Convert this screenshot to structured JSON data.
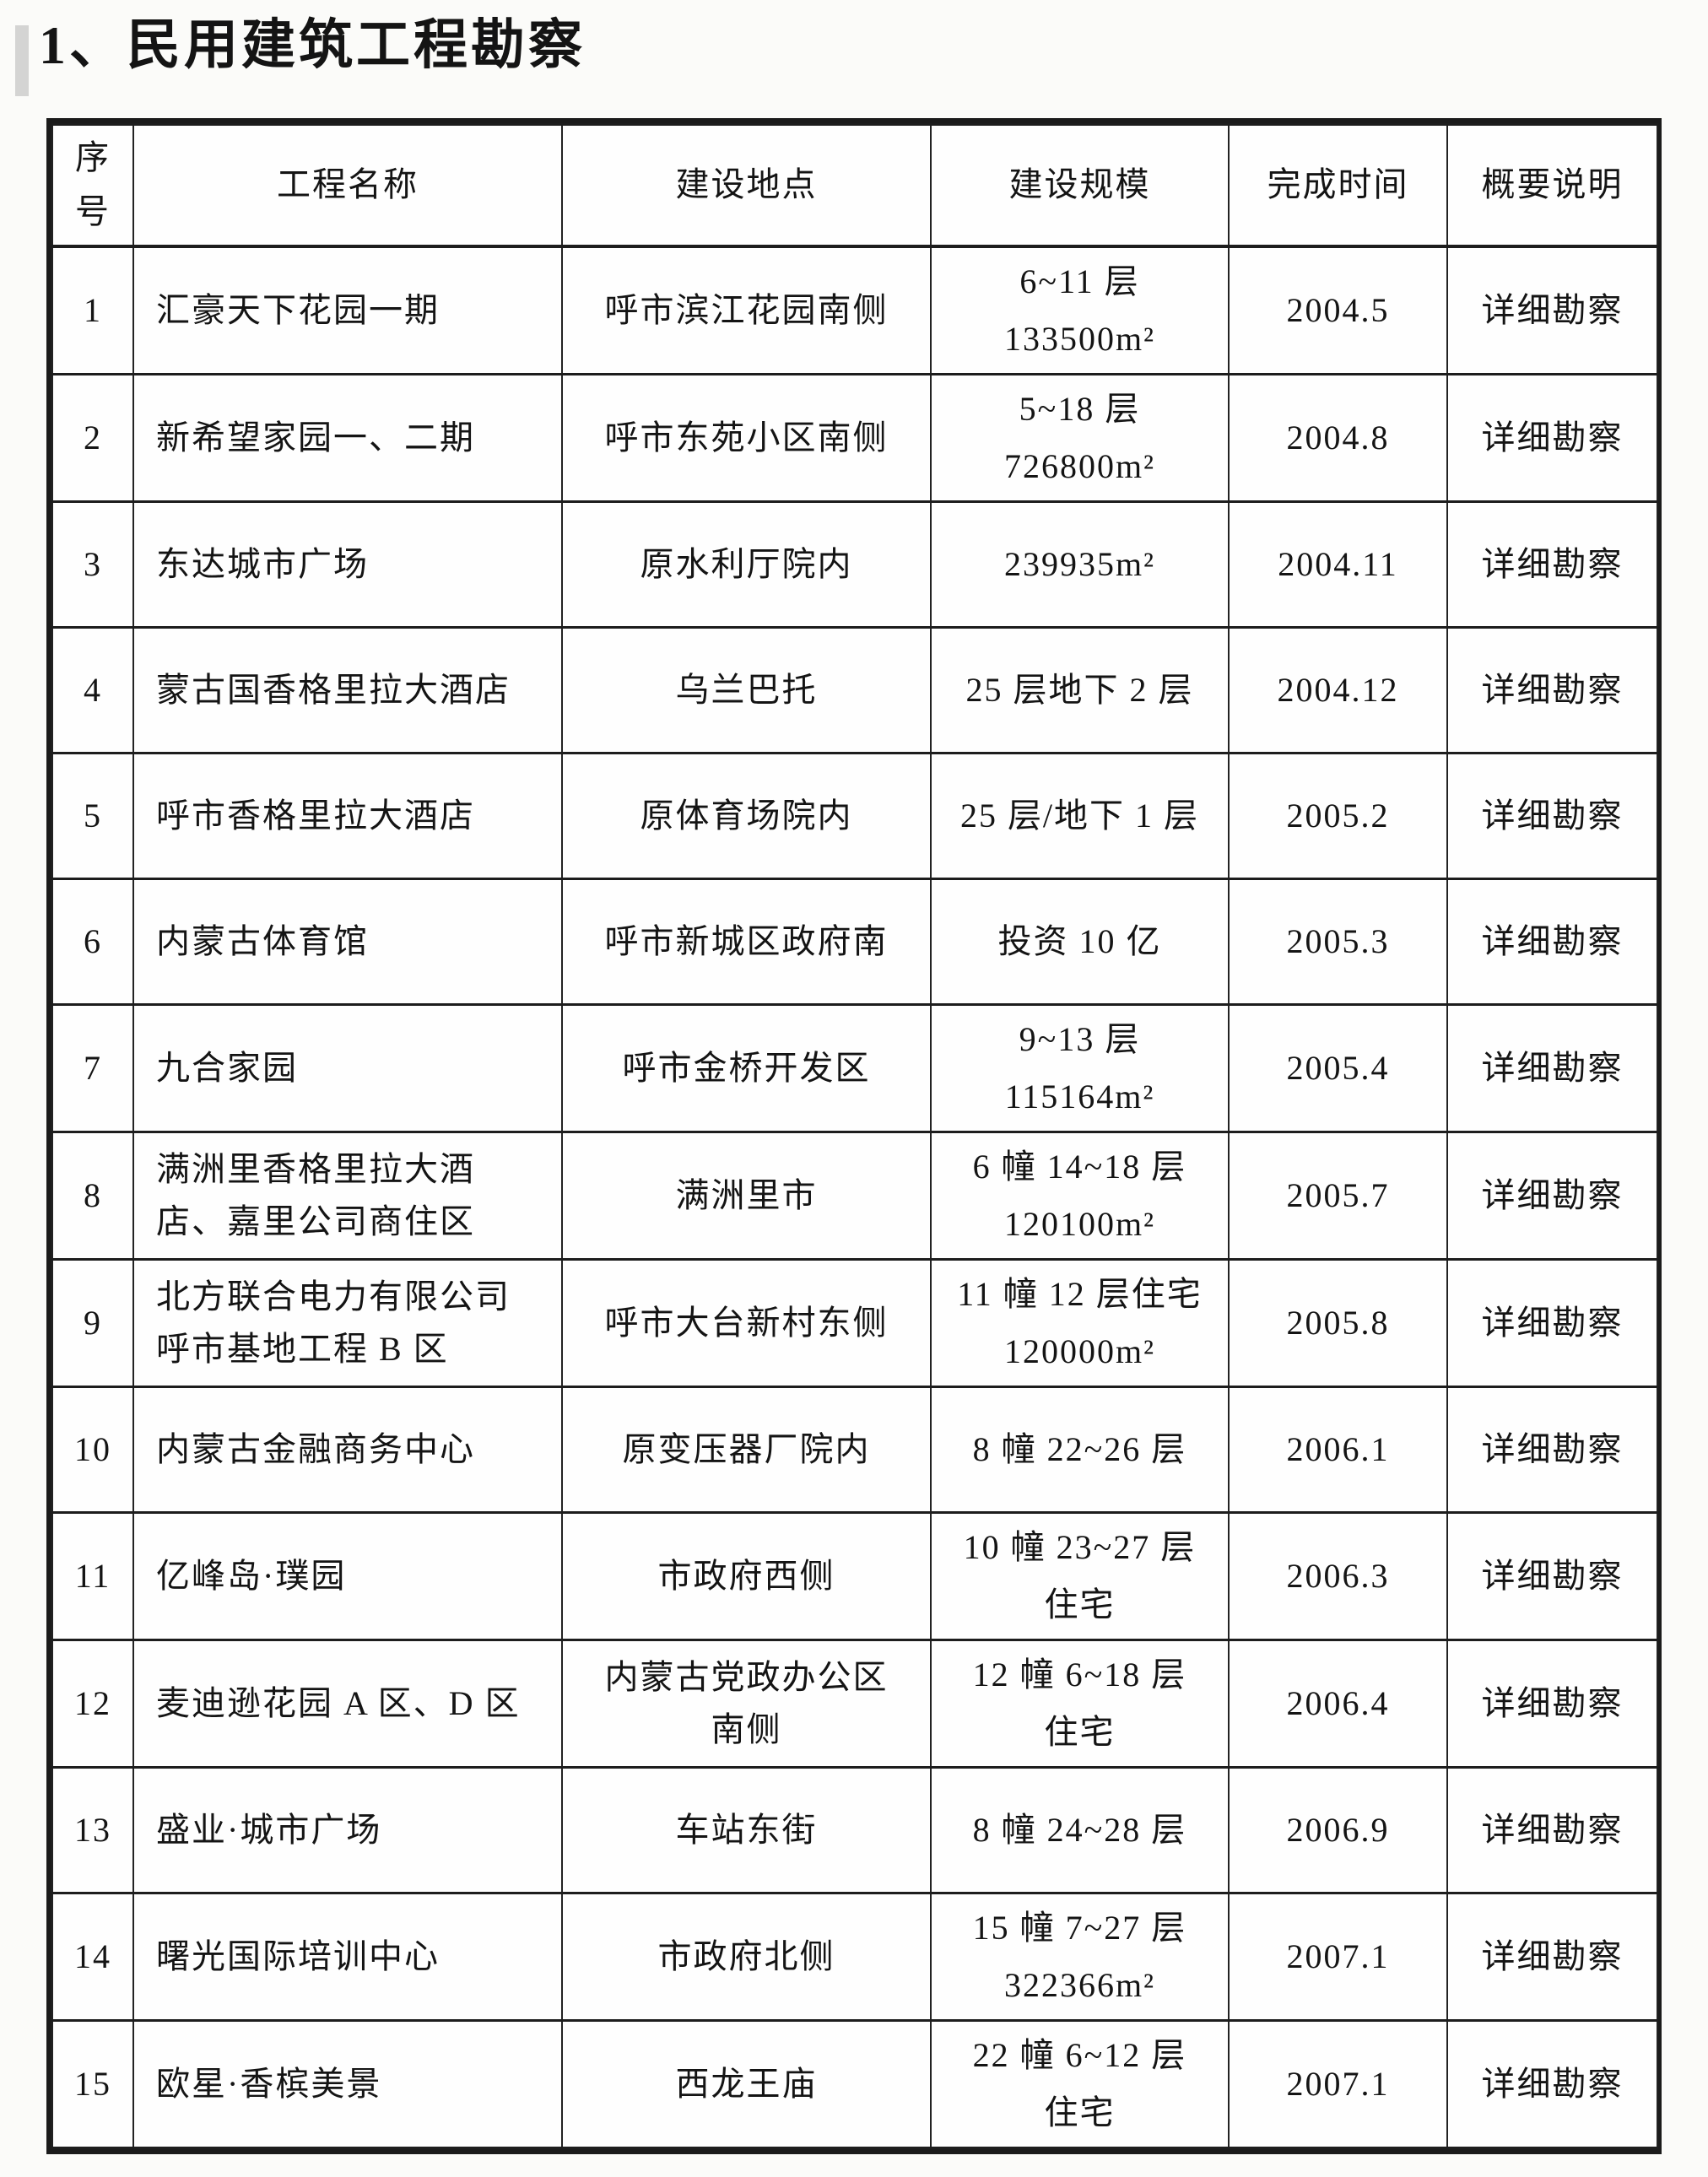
{
  "page": {
    "title": "1、民用建筑工程勘察"
  },
  "table": {
    "headers": [
      "序号",
      "工程名称",
      "建设地点",
      "建设规模",
      "完成时间",
      "概要说明"
    ],
    "rows": [
      {
        "no": "1",
        "name": "汇豪天下花园一期",
        "location": "呼市滨江花园南侧",
        "scale": [
          "6~11 层",
          "133500m²"
        ],
        "date": "2004.5",
        "summary": "详细勘察"
      },
      {
        "no": "2",
        "name": "新希望家园一、二期",
        "location": "呼市东苑小区南侧",
        "scale": [
          "5~18 层",
          "726800m²"
        ],
        "date": "2004.8",
        "summary": "详细勘察"
      },
      {
        "no": "3",
        "name": "东达城市广场",
        "location": "原水利厅院内",
        "scale": [
          "239935m²"
        ],
        "date": "2004.11",
        "summary": "详细勘察"
      },
      {
        "no": "4",
        "name": "蒙古国香格里拉大酒店",
        "location": "乌兰巴托",
        "scale": [
          "25 层地下 2 层"
        ],
        "date": "2004.12",
        "summary": "详细勘察"
      },
      {
        "no": "5",
        "name": "呼市香格里拉大酒店",
        "location": "原体育场院内",
        "scale": [
          "25 层/地下 1 层"
        ],
        "date": "2005.2",
        "summary": "详细勘察"
      },
      {
        "no": "6",
        "name": "内蒙古体育馆",
        "location": "呼市新城区政府南",
        "scale": [
          "投资 10 亿"
        ],
        "date": "2005.3",
        "summary": "详细勘察"
      },
      {
        "no": "7",
        "name": "九合家园",
        "location": "呼市金桥开发区",
        "scale": [
          "9~13 层",
          "115164m²"
        ],
        "date": "2005.4",
        "summary": "详细勘察"
      },
      {
        "no": "8",
        "name": "满洲里香格里拉大酒店、嘉里公司商住区",
        "location": "满洲里市",
        "scale": [
          "6 幢 14~18 层",
          "120100m²"
        ],
        "date": "2005.7",
        "summary": "详细勘察"
      },
      {
        "no": "9",
        "name": "北方联合电力有限公司呼市基地工程 B 区",
        "location": "呼市大台新村东侧",
        "scale": [
          "11 幢 12 层住宅",
          "120000m²"
        ],
        "date": "2005.8",
        "summary": "详细勘察"
      },
      {
        "no": "10",
        "name": "内蒙古金融商务中心",
        "location": "原变压器厂院内",
        "scale": [
          "8 幢 22~26 层"
        ],
        "date": "2006.1",
        "summary": "详细勘察"
      },
      {
        "no": "11",
        "name": "亿峰岛·璞园",
        "location": "市政府西侧",
        "scale": [
          "10 幢 23~27 层",
          "住宅"
        ],
        "date": "2006.3",
        "summary": "详细勘察"
      },
      {
        "no": "12",
        "name": "麦迪逊花园 A 区、D 区",
        "location": "内蒙古党政办公区南侧",
        "scale": [
          "12 幢 6~18 层",
          "住宅"
        ],
        "date": "2006.4",
        "summary": "详细勘察"
      },
      {
        "no": "13",
        "name": "盛业·城市广场",
        "location": "车站东街",
        "scale": [
          "8 幢 24~28 层"
        ],
        "date": "2006.9",
        "summary": "详细勘察"
      },
      {
        "no": "14",
        "name": "曙光国际培训中心",
        "location": "市政府北侧",
        "scale": [
          "15 幢 7~27 层",
          "322366m²"
        ],
        "date": "2007.1",
        "summary": "详细勘察"
      },
      {
        "no": "15",
        "name": "欧星·香槟美景",
        "location": "西龙王庙",
        "scale": [
          "22 幢 6~12 层",
          "住宅"
        ],
        "date": "2007.1",
        "summary": "详细勘察"
      }
    ]
  }
}
